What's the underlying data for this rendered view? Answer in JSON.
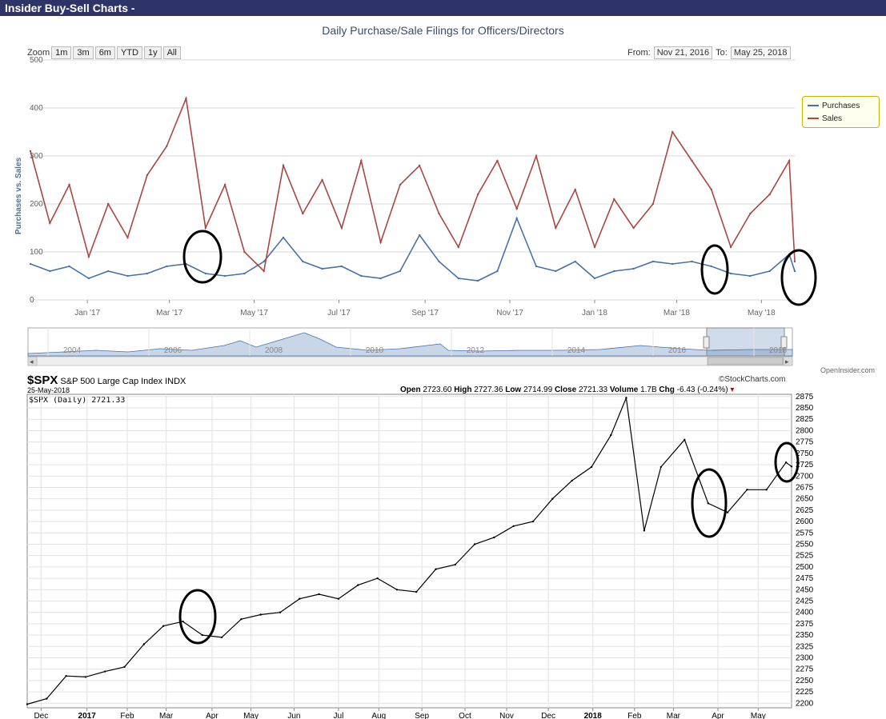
{
  "window": {
    "title": "Insider Buy-Sell Charts -"
  },
  "top_chart": {
    "zoom_label": "Zoom",
    "zoom_buttons": [
      "1m",
      "3m",
      "6m",
      "YTD",
      "1y",
      "All"
    ],
    "from_label": "From:",
    "from_value": "Nov 21, 2016",
    "to_label": "To:",
    "to_value": "May 25, 2018",
    "credit": "OpenInsider.com",
    "nav_years": [
      "2004",
      "2006",
      "2008",
      "2010",
      "2012",
      "2014",
      "2016",
      "2018"
    ]
  },
  "bottom_chart": {
    "symbol": "$SPX",
    "name": "S&P 500 Large Cap Index",
    "exchange": "INDX",
    "date": "25-May-2018",
    "brand": "©StockCharts.com",
    "series_label": "$SPX (Daily) 2721.33",
    "open_label": "Open",
    "open": "2723.60",
    "high_label": "High",
    "high": "2727.36",
    "low_label": "Low",
    "low": "2714.99",
    "close_label": "Close",
    "close": "2721.33",
    "volume_label": "Volume",
    "volume": "1.7B",
    "chg_label": "Chg",
    "chg": "-6.43 (-0.24%)"
  },
  "chart_data": [
    {
      "type": "line",
      "title": "Daily Purchase/Sale Filings for Officers/Directors",
      "ylabel": "Purchases vs. Sales",
      "ylim": [
        0,
        500
      ],
      "yticks": [
        0,
        100,
        200,
        300,
        400,
        500
      ],
      "xlim": [
        "2016-11-21",
        "2018-05-25"
      ],
      "xticks": [
        {
          "date": "2017-01-01",
          "label": "Jan '17"
        },
        {
          "date": "2017-03-01",
          "label": "Mar '17"
        },
        {
          "date": "2017-05-01",
          "label": "May '17"
        },
        {
          "date": "2017-07-01",
          "label": "Jul '17"
        },
        {
          "date": "2017-09-01",
          "label": "Sep '17"
        },
        {
          "date": "2017-11-01",
          "label": "Nov '17"
        },
        {
          "date": "2018-01-01",
          "label": "Jan '18"
        },
        {
          "date": "2018-03-01",
          "label": "Mar '18"
        },
        {
          "date": "2018-05-01",
          "label": "May '18"
        }
      ],
      "legend": "right",
      "series": [
        {
          "name": "Purchases",
          "color": "#4572a7",
          "points": [
            [
              "2016-11-21",
              75
            ],
            [
              "2016-12-05",
              60
            ],
            [
              "2016-12-19",
              70
            ],
            [
              "2017-01-02",
              45
            ],
            [
              "2017-01-16",
              60
            ],
            [
              "2017-01-30",
              50
            ],
            [
              "2017-02-13",
              55
            ],
            [
              "2017-02-27",
              70
            ],
            [
              "2017-03-13",
              75
            ],
            [
              "2017-03-27",
              55
            ],
            [
              "2017-04-10",
              50
            ],
            [
              "2017-04-24",
              55
            ],
            [
              "2017-05-08",
              80
            ],
            [
              "2017-05-22",
              130
            ],
            [
              "2017-06-05",
              80
            ],
            [
              "2017-06-19",
              65
            ],
            [
              "2017-07-03",
              70
            ],
            [
              "2017-07-17",
              50
            ],
            [
              "2017-07-31",
              45
            ],
            [
              "2017-08-14",
              60
            ],
            [
              "2017-08-28",
              135
            ],
            [
              "2017-09-11",
              80
            ],
            [
              "2017-09-25",
              45
            ],
            [
              "2017-10-09",
              40
            ],
            [
              "2017-10-23",
              60
            ],
            [
              "2017-11-06",
              170
            ],
            [
              "2017-11-20",
              70
            ],
            [
              "2017-12-04",
              60
            ],
            [
              "2017-12-18",
              80
            ],
            [
              "2018-01-01",
              45
            ],
            [
              "2018-01-15",
              60
            ],
            [
              "2018-01-29",
              65
            ],
            [
              "2018-02-12",
              80
            ],
            [
              "2018-02-26",
              75
            ],
            [
              "2018-03-12",
              80
            ],
            [
              "2018-03-26",
              70
            ],
            [
              "2018-04-09",
              55
            ],
            [
              "2018-04-23",
              50
            ],
            [
              "2018-05-07",
              60
            ],
            [
              "2018-05-21",
              95
            ],
            [
              "2018-05-25",
              60
            ]
          ]
        },
        {
          "name": "Sales",
          "color": "#aa4643",
          "points": [
            [
              "2016-11-21",
              310
            ],
            [
              "2016-12-05",
              160
            ],
            [
              "2016-12-19",
              240
            ],
            [
              "2017-01-02",
              90
            ],
            [
              "2017-01-16",
              200
            ],
            [
              "2017-01-30",
              130
            ],
            [
              "2017-02-13",
              260
            ],
            [
              "2017-02-27",
              320
            ],
            [
              "2017-03-13",
              420
            ],
            [
              "2017-03-27",
              150
            ],
            [
              "2017-04-10",
              240
            ],
            [
              "2017-04-24",
              100
            ],
            [
              "2017-05-08",
              60
            ],
            [
              "2017-05-22",
              280
            ],
            [
              "2017-06-05",
              180
            ],
            [
              "2017-06-19",
              250
            ],
            [
              "2017-07-03",
              150
            ],
            [
              "2017-07-17",
              290
            ],
            [
              "2017-07-31",
              120
            ],
            [
              "2017-08-14",
              240
            ],
            [
              "2017-08-28",
              280
            ],
            [
              "2017-09-11",
              180
            ],
            [
              "2017-09-25",
              110
            ],
            [
              "2017-10-09",
              220
            ],
            [
              "2017-10-23",
              290
            ],
            [
              "2017-11-06",
              190
            ],
            [
              "2017-11-20",
              300
            ],
            [
              "2017-12-04",
              150
            ],
            [
              "2017-12-18",
              230
            ],
            [
              "2018-01-01",
              110
            ],
            [
              "2018-01-15",
              210
            ],
            [
              "2018-01-29",
              150
            ],
            [
              "2018-02-12",
              200
            ],
            [
              "2018-02-26",
              350
            ],
            [
              "2018-03-12",
              290
            ],
            [
              "2018-03-26",
              230
            ],
            [
              "2018-04-09",
              110
            ],
            [
              "2018-04-23",
              180
            ],
            [
              "2018-05-07",
              220
            ],
            [
              "2018-05-21",
              290
            ],
            [
              "2018-05-25",
              80
            ]
          ]
        }
      ]
    },
    {
      "type": "line",
      "title": "$SPX (Daily) 2721.33",
      "ylim": [
        2190,
        2880
      ],
      "yticks": [
        2200,
        2225,
        2250,
        2275,
        2300,
        2325,
        2350,
        2375,
        2400,
        2425,
        2450,
        2475,
        2500,
        2525,
        2550,
        2575,
        2600,
        2625,
        2650,
        2675,
        2700,
        2725,
        2750,
        2775,
        2800,
        2825,
        2850,
        2875
      ],
      "xlim": [
        "2016-11-21",
        "2018-05-25"
      ],
      "xticks": [
        {
          "date": "2016-12-01",
          "label": "Dec"
        },
        {
          "date": "2017-01-03",
          "label": "2017"
        },
        {
          "date": "2017-02-01",
          "label": "Feb"
        },
        {
          "date": "2017-03-01",
          "label": "Mar"
        },
        {
          "date": "2017-04-03",
          "label": "Apr"
        },
        {
          "date": "2017-05-01",
          "label": "May"
        },
        {
          "date": "2017-06-01",
          "label": "Jun"
        },
        {
          "date": "2017-07-03",
          "label": "Jul"
        },
        {
          "date": "2017-08-01",
          "label": "Aug"
        },
        {
          "date": "2017-09-01",
          "label": "Sep"
        },
        {
          "date": "2017-10-02",
          "label": "Oct"
        },
        {
          "date": "2017-11-01",
          "label": "Nov"
        },
        {
          "date": "2017-12-01",
          "label": "Dec"
        },
        {
          "date": "2018-01-02",
          "label": "2018"
        },
        {
          "date": "2018-02-01",
          "label": "Feb"
        },
        {
          "date": "2018-03-01",
          "label": "Mar"
        },
        {
          "date": "2018-04-02",
          "label": "Apr"
        },
        {
          "date": "2018-05-01",
          "label": "May"
        }
      ],
      "series": [
        {
          "color": "#000000",
          "points": [
            [
              "2016-11-21",
              2198
            ],
            [
              "2016-12-05",
              2210
            ],
            [
              "2016-12-19",
              2260
            ],
            [
              "2017-01-02",
              2258
            ],
            [
              "2017-01-16",
              2270
            ],
            [
              "2017-01-30",
              2280
            ],
            [
              "2017-02-13",
              2330
            ],
            [
              "2017-02-27",
              2370
            ],
            [
              "2017-03-13",
              2380
            ],
            [
              "2017-03-27",
              2350
            ],
            [
              "2017-04-10",
              2345
            ],
            [
              "2017-04-24",
              2385
            ],
            [
              "2017-05-08",
              2395
            ],
            [
              "2017-05-22",
              2400
            ],
            [
              "2017-06-05",
              2430
            ],
            [
              "2017-06-19",
              2440
            ],
            [
              "2017-07-03",
              2430
            ],
            [
              "2017-07-17",
              2460
            ],
            [
              "2017-07-31",
              2475
            ],
            [
              "2017-08-14",
              2450
            ],
            [
              "2017-08-28",
              2445
            ],
            [
              "2017-09-11",
              2495
            ],
            [
              "2017-09-25",
              2505
            ],
            [
              "2017-10-09",
              2550
            ],
            [
              "2017-10-23",
              2565
            ],
            [
              "2017-11-06",
              2590
            ],
            [
              "2017-11-20",
              2600
            ],
            [
              "2017-12-04",
              2650
            ],
            [
              "2017-12-18",
              2690
            ],
            [
              "2018-01-01",
              2720
            ],
            [
              "2018-01-15",
              2790
            ],
            [
              "2018-01-26",
              2872
            ],
            [
              "2018-02-08",
              2580
            ],
            [
              "2018-02-20",
              2720
            ],
            [
              "2018-03-09",
              2780
            ],
            [
              "2018-03-26",
              2640
            ],
            [
              "2018-04-09",
              2620
            ],
            [
              "2018-04-23",
              2670
            ],
            [
              "2018-05-07",
              2670
            ],
            [
              "2018-05-21",
              2730
            ],
            [
              "2018-05-25",
              2721
            ]
          ]
        }
      ]
    }
  ]
}
